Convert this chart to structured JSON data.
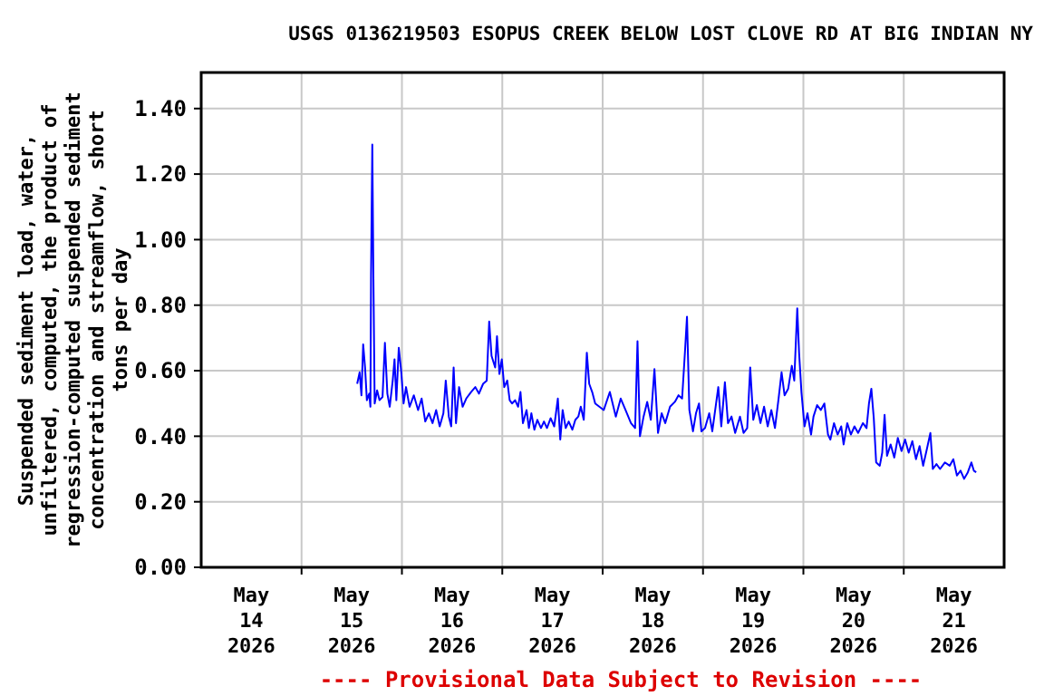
{
  "chart_data": {
    "type": "line",
    "title": "USGS 0136219503 ESOPUS CREEK BELOW LOST CLOVE RD AT BIG INDIAN NY",
    "ylabel": "Suspended sediment load, water,\nunfiltered, computed, the product of\nregression-computed suspended sediment\nconcentration and streamflow, short\ntons per day",
    "annotations": [
      "---- Provisional Data Subject to Revision ----"
    ],
    "xlim": [
      "2026-05-14T00:00",
      "2026-05-22T00:00"
    ],
    "xticks": [
      {
        "value": "2026-05-14T12:00",
        "label": "May\n14\n2026"
      },
      {
        "value": "2026-05-15T00:00",
        "label": null
      },
      {
        "value": "2026-05-15T12:00",
        "label": "May\n15\n2026"
      },
      {
        "value": "2026-05-16T00:00",
        "label": null
      },
      {
        "value": "2026-05-16T12:00",
        "label": "May\n16\n2026"
      },
      {
        "value": "2026-05-17T00:00",
        "label": null
      },
      {
        "value": "2026-05-17T12:00",
        "label": "May\n17\n2026"
      },
      {
        "value": "2026-05-18T00:00",
        "label": null
      },
      {
        "value": "2026-05-18T12:00",
        "label": "May\n18\n2026"
      },
      {
        "value": "2026-05-19T00:00",
        "label": null
      },
      {
        "value": "2026-05-19T12:00",
        "label": "May\n19\n2026"
      },
      {
        "value": "2026-05-20T00:00",
        "label": null
      },
      {
        "value": "2026-05-20T12:00",
        "label": "May\n20\n2026"
      },
      {
        "value": "2026-05-21T00:00",
        "label": null
      },
      {
        "value": "2026-05-21T12:00",
        "label": "May\n21\n2026"
      }
    ],
    "ylim": [
      0,
      1.51
    ],
    "yticks": [
      {
        "value": 0,
        "label": "0.00"
      },
      {
        "value": 0.2,
        "label": "0.20"
      },
      {
        "value": 0.4,
        "label": "0.40"
      },
      {
        "value": 0.6,
        "label": "0.60"
      },
      {
        "value": 0.8,
        "label": "0.80"
      },
      {
        "value": 1.0,
        "label": "1.00"
      },
      {
        "value": 1.2,
        "label": "1.20"
      },
      {
        "value": 1.4,
        "label": "1.40"
      }
    ],
    "grid": true,
    "series": [
      {
        "color": "#0000ff",
        "x": [
          "2026-05-15T13:18",
          "2026-05-15T13:53",
          "2026-05-15T14:19",
          "2026-05-15T14:44",
          "2026-05-15T15:11",
          "2026-05-15T15:37",
          "2026-05-15T16:11",
          "2026-05-15T16:28",
          "2026-05-15T16:37",
          "2026-05-15T16:55",
          "2026-05-15T17:11",
          "2026-05-15T17:29",
          "2026-05-15T18:04",
          "2026-05-15T18:38",
          "2026-05-15T19:22",
          "2026-05-15T19:56",
          "2026-05-15T20:31",
          "2026-05-15T21:05",
          "2026-05-15T21:48",
          "2026-05-15T22:14",
          "2026-05-15T22:40",
          "2026-05-15T23:15",
          "2026-05-15T23:49",
          "2026-05-16T00:24",
          "2026-05-16T00:59",
          "2026-05-16T01:50",
          "2026-05-16T02:51",
          "2026-05-16T03:52",
          "2026-05-16T04:43",
          "2026-05-16T05:35",
          "2026-05-16T06:27",
          "2026-05-16T07:19",
          "2026-05-16T08:11",
          "2026-05-16T09:02",
          "2026-05-16T09:55",
          "2026-05-16T10:29",
          "2026-05-16T11:13",
          "2026-05-16T11:47",
          "2026-05-16T12:22",
          "2026-05-16T12:56",
          "2026-05-16T13:40",
          "2026-05-16T14:31",
          "2026-05-16T15:23",
          "2026-05-16T16:32",
          "2026-05-16T17:33",
          "2026-05-16T18:25",
          "2026-05-16T19:25",
          "2026-05-16T20:17",
          "2026-05-16T20:52",
          "2026-05-16T21:26",
          "2026-05-16T22:18",
          "2026-05-16T22:44",
          "2026-05-16T23:19",
          "2026-05-16T23:53",
          "2026-05-17T00:28",
          "2026-05-17T01:11",
          "2026-05-17T01:46",
          "2026-05-17T02:20",
          "2026-05-17T03:04",
          "2026-05-17T03:47",
          "2026-05-17T04:21",
          "2026-05-17T04:56",
          "2026-05-17T05:48",
          "2026-05-17T06:22",
          "2026-05-17T06:57",
          "2026-05-17T07:40",
          "2026-05-17T08:23",
          "2026-05-17T09:15",
          "2026-05-17T09:58",
          "2026-05-17T10:41",
          "2026-05-17T11:34",
          "2026-05-17T12:25",
          "2026-05-17T13:17",
          "2026-05-17T13:52",
          "2026-05-17T14:26",
          "2026-05-17T15:10",
          "2026-05-17T15:53",
          "2026-05-17T16:45",
          "2026-05-17T17:28",
          "2026-05-17T18:11",
          "2026-05-17T18:46",
          "2026-05-17T19:29",
          "2026-05-17T20:13",
          "2026-05-17T20:47",
          "2026-05-17T21:30",
          "2026-05-17T22:13",
          "2026-05-18T00:16",
          "2026-05-18T01:43",
          "2026-05-18T03:09",
          "2026-05-18T04:19",
          "2026-05-18T05:28",
          "2026-05-18T06:46",
          "2026-05-18T07:46",
          "2026-05-18T08:20",
          "2026-05-18T08:55",
          "2026-05-18T09:47",
          "2026-05-18T10:39",
          "2026-05-18T11:31",
          "2026-05-18T12:23",
          "2026-05-18T13:14",
          "2026-05-18T14:07",
          "2026-05-18T14:58",
          "2026-05-18T16:07",
          "2026-05-18T17:16",
          "2026-05-18T18:08",
          "2026-05-18T19:00",
          "2026-05-18T19:43",
          "2026-05-18T20:10",
          "2026-05-18T20:44",
          "2026-05-18T21:36",
          "2026-05-18T22:19",
          "2026-05-18T23:02",
          "2026-05-18T23:37",
          "2026-05-19T00:29",
          "2026-05-19T01:29",
          "2026-05-19T02:13",
          "2026-05-19T03:04",
          "2026-05-19T03:39",
          "2026-05-19T04:22",
          "2026-05-19T05:14",
          "2026-05-19T05:58",
          "2026-05-19T06:49",
          "2026-05-19T07:41",
          "2026-05-19T08:50",
          "2026-05-19T09:42",
          "2026-05-19T10:34",
          "2026-05-19T11:17",
          "2026-05-19T12:01",
          "2026-05-19T12:52",
          "2026-05-19T13:44",
          "2026-05-19T14:36",
          "2026-05-19T15:28",
          "2026-05-19T16:20",
          "2026-05-19T17:12",
          "2026-05-19T18:04",
          "2026-05-19T18:47",
          "2026-05-19T19:30",
          "2026-05-19T20:22",
          "2026-05-19T21:14",
          "2026-05-19T21:49",
          "2026-05-19T22:32",
          "2026-05-19T22:58",
          "2026-05-19T23:32",
          "2026-05-20T00:16",
          "2026-05-20T00:59",
          "2026-05-20T01:50",
          "2026-05-20T02:25",
          "2026-05-20T03:17",
          "2026-05-20T04:09",
          "2026-05-20T05:01",
          "2026-05-20T05:53",
          "2026-05-20T06:27",
          "2026-05-20T07:19",
          "2026-05-20T08:11",
          "2026-05-20T09:03",
          "2026-05-20T09:37",
          "2026-05-20T10:29",
          "2026-05-20T11:21",
          "2026-05-20T12:13",
          "2026-05-20T13:05",
          "2026-05-20T14:14",
          "2026-05-20T15:06",
          "2026-05-20T15:41",
          "2026-05-20T16:15",
          "2026-05-20T16:50",
          "2026-05-20T17:24",
          "2026-05-20T18:16",
          "2026-05-20T18:51",
          "2026-05-20T19:25",
          "2026-05-20T20:00",
          "2026-05-20T20:52",
          "2026-05-20T21:44",
          "2026-05-20T22:35",
          "2026-05-20T23:28",
          "2026-05-21T00:19",
          "2026-05-21T01:11",
          "2026-05-21T02:03",
          "2026-05-21T02:55",
          "2026-05-21T03:47",
          "2026-05-21T04:38",
          "2026-05-21T05:31",
          "2026-05-21T06:22",
          "2026-05-21T06:57",
          "2026-05-21T07:49",
          "2026-05-21T08:41",
          "2026-05-21T09:50",
          "2026-05-21T10:59",
          "2026-05-21T11:51",
          "2026-05-21T12:43",
          "2026-05-21T13:35",
          "2026-05-21T14:26",
          "2026-05-21T15:19",
          "2026-05-21T16:10",
          "2026-05-21T16:45",
          "2026-05-21T17:19"
        ],
        "values": [
          0.56,
          0.595,
          0.525,
          0.68,
          0.61,
          0.51,
          0.53,
          0.49,
          0.89,
          1.29,
          0.88,
          0.5,
          0.54,
          0.51,
          0.52,
          0.685,
          0.53,
          0.49,
          0.57,
          0.635,
          0.51,
          0.67,
          0.6,
          0.5,
          0.55,
          0.49,
          0.525,
          0.48,
          0.515,
          0.445,
          0.47,
          0.44,
          0.48,
          0.43,
          0.47,
          0.57,
          0.46,
          0.43,
          0.61,
          0.44,
          0.55,
          0.49,
          0.515,
          0.535,
          0.55,
          0.53,
          0.56,
          0.57,
          0.75,
          0.645,
          0.61,
          0.705,
          0.59,
          0.635,
          0.55,
          0.57,
          0.51,
          0.5,
          0.51,
          0.49,
          0.535,
          0.44,
          0.48,
          0.425,
          0.47,
          0.42,
          0.45,
          0.425,
          0.445,
          0.425,
          0.455,
          0.43,
          0.515,
          0.39,
          0.48,
          0.425,
          0.445,
          0.42,
          0.45,
          0.46,
          0.49,
          0.45,
          0.655,
          0.56,
          0.535,
          0.5,
          0.48,
          0.535,
          0.46,
          0.515,
          0.48,
          0.44,
          0.425,
          0.69,
          0.4,
          0.46,
          0.505,
          0.45,
          0.605,
          0.41,
          0.47,
          0.44,
          0.49,
          0.505,
          0.525,
          0.515,
          0.665,
          0.765,
          0.48,
          0.415,
          0.47,
          0.5,
          0.415,
          0.425,
          0.47,
          0.415,
          0.495,
          0.55,
          0.43,
          0.565,
          0.44,
          0.46,
          0.41,
          0.46,
          0.41,
          0.425,
          0.61,
          0.45,
          0.495,
          0.44,
          0.49,
          0.43,
          0.48,
          0.425,
          0.515,
          0.595,
          0.525,
          0.545,
          0.615,
          0.57,
          0.79,
          0.655,
          0.535,
          0.43,
          0.47,
          0.405,
          0.46,
          0.495,
          0.48,
          0.5,
          0.405,
          0.39,
          0.44,
          0.405,
          0.43,
          0.375,
          0.44,
          0.405,
          0.43,
          0.41,
          0.44,
          0.425,
          0.5,
          0.545,
          0.455,
          0.32,
          0.31,
          0.35,
          0.465,
          0.34,
          0.375,
          0.335,
          0.395,
          0.355,
          0.39,
          0.35,
          0.385,
          0.33,
          0.37,
          0.31,
          0.36,
          0.41,
          0.3,
          0.315,
          0.3,
          0.32,
          0.31,
          0.33,
          0.28,
          0.295,
          0.27,
          0.29,
          0.32,
          0.295,
          0.29
        ]
      }
    ]
  }
}
